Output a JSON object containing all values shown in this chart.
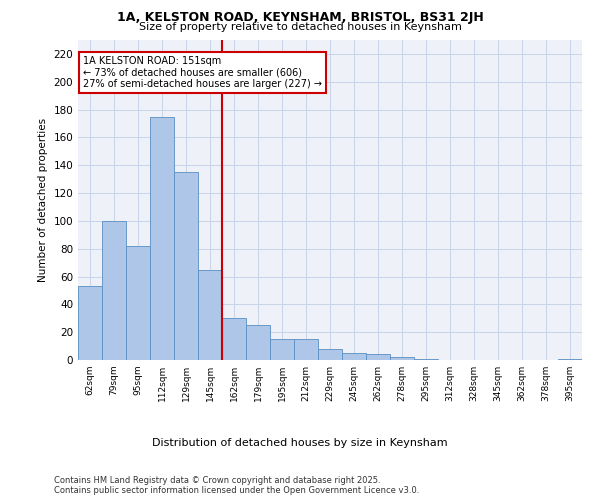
{
  "title_line1": "1A, KELSTON ROAD, KEYNSHAM, BRISTOL, BS31 2JH",
  "title_line2": "Size of property relative to detached houses in Keynsham",
  "xlabel": "Distribution of detached houses by size in Keynsham",
  "ylabel": "Number of detached properties",
  "categories": [
    "62sqm",
    "79sqm",
    "95sqm",
    "112sqm",
    "129sqm",
    "145sqm",
    "162sqm",
    "179sqm",
    "195sqm",
    "212sqm",
    "229sqm",
    "245sqm",
    "262sqm",
    "278sqm",
    "295sqm",
    "312sqm",
    "328sqm",
    "345sqm",
    "362sqm",
    "378sqm",
    "395sqm"
  ],
  "values": [
    53,
    100,
    82,
    175,
    135,
    65,
    30,
    25,
    15,
    15,
    8,
    5,
    4,
    2,
    1,
    0,
    0,
    0,
    0,
    0,
    1
  ],
  "bar_color": "#aec6e8",
  "bar_edge_color": "#5a8fc3",
  "vline_color": "#cc0000",
  "annotation_title": "1A KELSTON ROAD: 151sqm",
  "annotation_line2": "← 73% of detached houses are smaller (606)",
  "annotation_line3": "27% of semi-detached houses are larger (227) →",
  "annotation_box_color": "#cc0000",
  "annotation_bg": "#ffffff",
  "ylim": [
    0,
    230
  ],
  "yticks": [
    0,
    20,
    40,
    60,
    80,
    100,
    120,
    140,
    160,
    180,
    200,
    220
  ],
  "grid_color": "#c8d4e8",
  "bg_color": "#eef2f8",
  "footer_line1": "Contains HM Land Registry data © Crown copyright and database right 2025.",
  "footer_line2": "Contains public sector information licensed under the Open Government Licence v3.0."
}
